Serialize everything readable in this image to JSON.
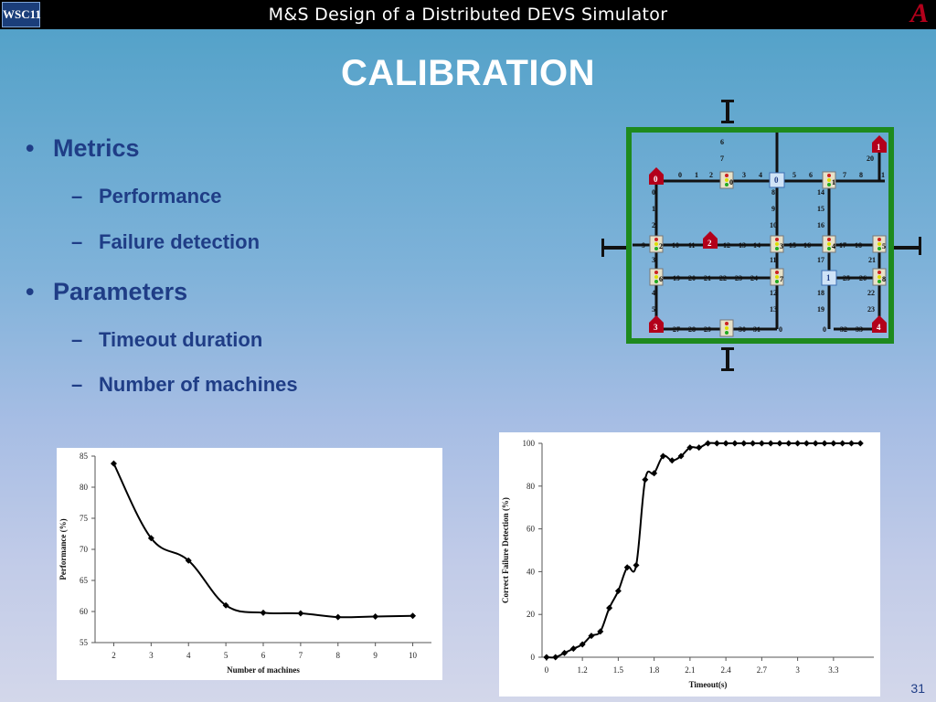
{
  "header": {
    "title": "M&S Design of a Distributed DEVS Simulator",
    "left_logo_text": "WSC11",
    "right_logo_text": "A"
  },
  "slide": {
    "title": "CALIBRATION",
    "page_number": "31",
    "bullets": [
      {
        "label": "Metrics",
        "children": [
          "Performance",
          "Failure detection"
        ]
      },
      {
        "label": "Parameters",
        "children": [
          "Timeout duration",
          "Number of machines"
        ]
      }
    ]
  },
  "colors": {
    "heading_text": "#1f3d86",
    "frame_green": "#1e8a1e",
    "house_red": "#b3001b"
  },
  "diagram": {
    "house_labels": [
      "0",
      "1",
      "2",
      "3",
      "4"
    ],
    "light_labels": [
      "0",
      "1",
      "2",
      "3",
      "4",
      "5",
      "6",
      "7",
      "8"
    ],
    "blue_labels": [
      "0",
      "1"
    ]
  },
  "chart_data": [
    {
      "type": "line",
      "title": "",
      "xlabel": "Number of machines",
      "ylabel": "Performance (%)",
      "x": [
        2,
        3,
        4,
        5,
        6,
        7,
        8,
        9,
        10
      ],
      "values": [
        83.8,
        71.8,
        68.2,
        61.0,
        59.8,
        59.7,
        59.1,
        59.2,
        59.3
      ],
      "ylim": [
        55,
        85
      ],
      "yticks": [
        55,
        60,
        65,
        70,
        75,
        80,
        85
      ],
      "xticks": [
        "2",
        "3",
        "4",
        "5",
        "6",
        "7",
        "8",
        "9",
        "10"
      ],
      "grid": false
    },
    {
      "type": "line",
      "title": "",
      "xlabel": "Timeout(s)",
      "ylabel": "Correct Failure Detection (%)",
      "x": [
        0,
        0.1,
        0.2,
        0.3,
        0.4,
        0.5,
        0.6,
        0.7,
        0.8,
        0.9,
        1.0,
        1.1,
        1.2,
        1.3,
        1.4,
        1.5,
        1.6,
        1.7,
        1.8,
        1.9,
        2.0,
        2.1,
        2.2,
        2.3,
        2.4,
        2.5,
        2.6,
        2.7,
        2.8,
        2.9,
        3.0,
        3.1,
        3.2,
        3.3,
        3.4,
        3.5
      ],
      "values": [
        0,
        0,
        2,
        4,
        6,
        10,
        12,
        23,
        31,
        42,
        43,
        83,
        86,
        94,
        92,
        94,
        98,
        98,
        100,
        100,
        100,
        100,
        100,
        100,
        100,
        100,
        100,
        100,
        100,
        100,
        100,
        100,
        100,
        100,
        100,
        100
      ],
      "ylim": [
        0,
        100
      ],
      "yticks": [
        0,
        20,
        40,
        60,
        80,
        100
      ],
      "xticks": [
        "0",
        "1.2",
        "1.5",
        "1.8",
        "2.1",
        "2.4",
        "2.7",
        "3",
        "3.3"
      ],
      "grid": false
    }
  ]
}
